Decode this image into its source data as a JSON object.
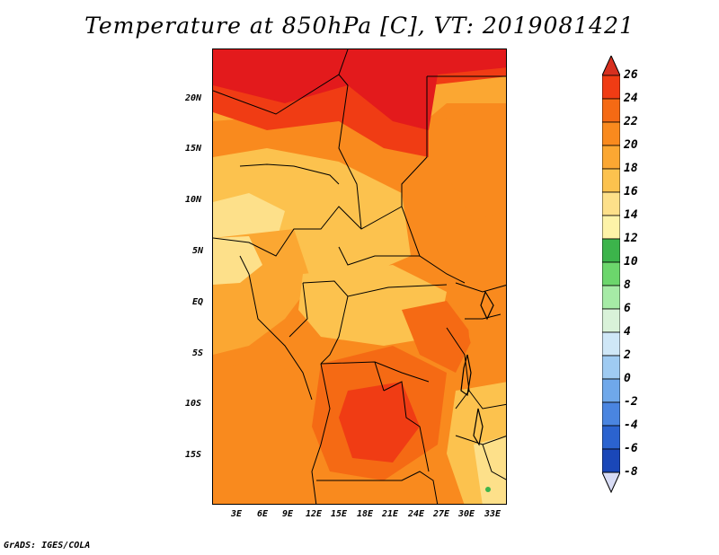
{
  "title": "Temperature at 850hPa [C], VT: 2019081421",
  "credit": "GrADS: IGES/COLA",
  "lat_labels": [
    "20N",
    "15N",
    "10N",
    "5N",
    "EQ",
    "5S",
    "10S",
    "15S"
  ],
  "lon_labels": [
    "3E",
    "6E",
    "9E",
    "12E",
    "15E",
    "18E",
    "21E",
    "24E",
    "27E",
    "30E",
    "33E"
  ],
  "colorbar": {
    "labels": [
      "26",
      "24",
      "22",
      "20",
      "18",
      "16",
      "14",
      "12",
      "10",
      "8",
      "6",
      "4",
      "2",
      "0",
      "-2",
      "-4",
      "-6",
      "-8"
    ],
    "colors": [
      "#e31a1c",
      "#f03c14",
      "#f56a14",
      "#f98a1e",
      "#fba732",
      "#fcc24e",
      "#fde08a",
      "#fdf3a8",
      "#3cb44b",
      "#6cd66c",
      "#a6eba6",
      "#d9f2d9",
      "#cfe7f7",
      "#9fcbf2",
      "#6fa8ea",
      "#4a85e0",
      "#2b63cf",
      "#1a47b8",
      "#10309c",
      "#0a1f7a"
    ],
    "top_triangle_color": "#d7301f",
    "bottom_triangle_color": "#d8dcf5"
  }
}
